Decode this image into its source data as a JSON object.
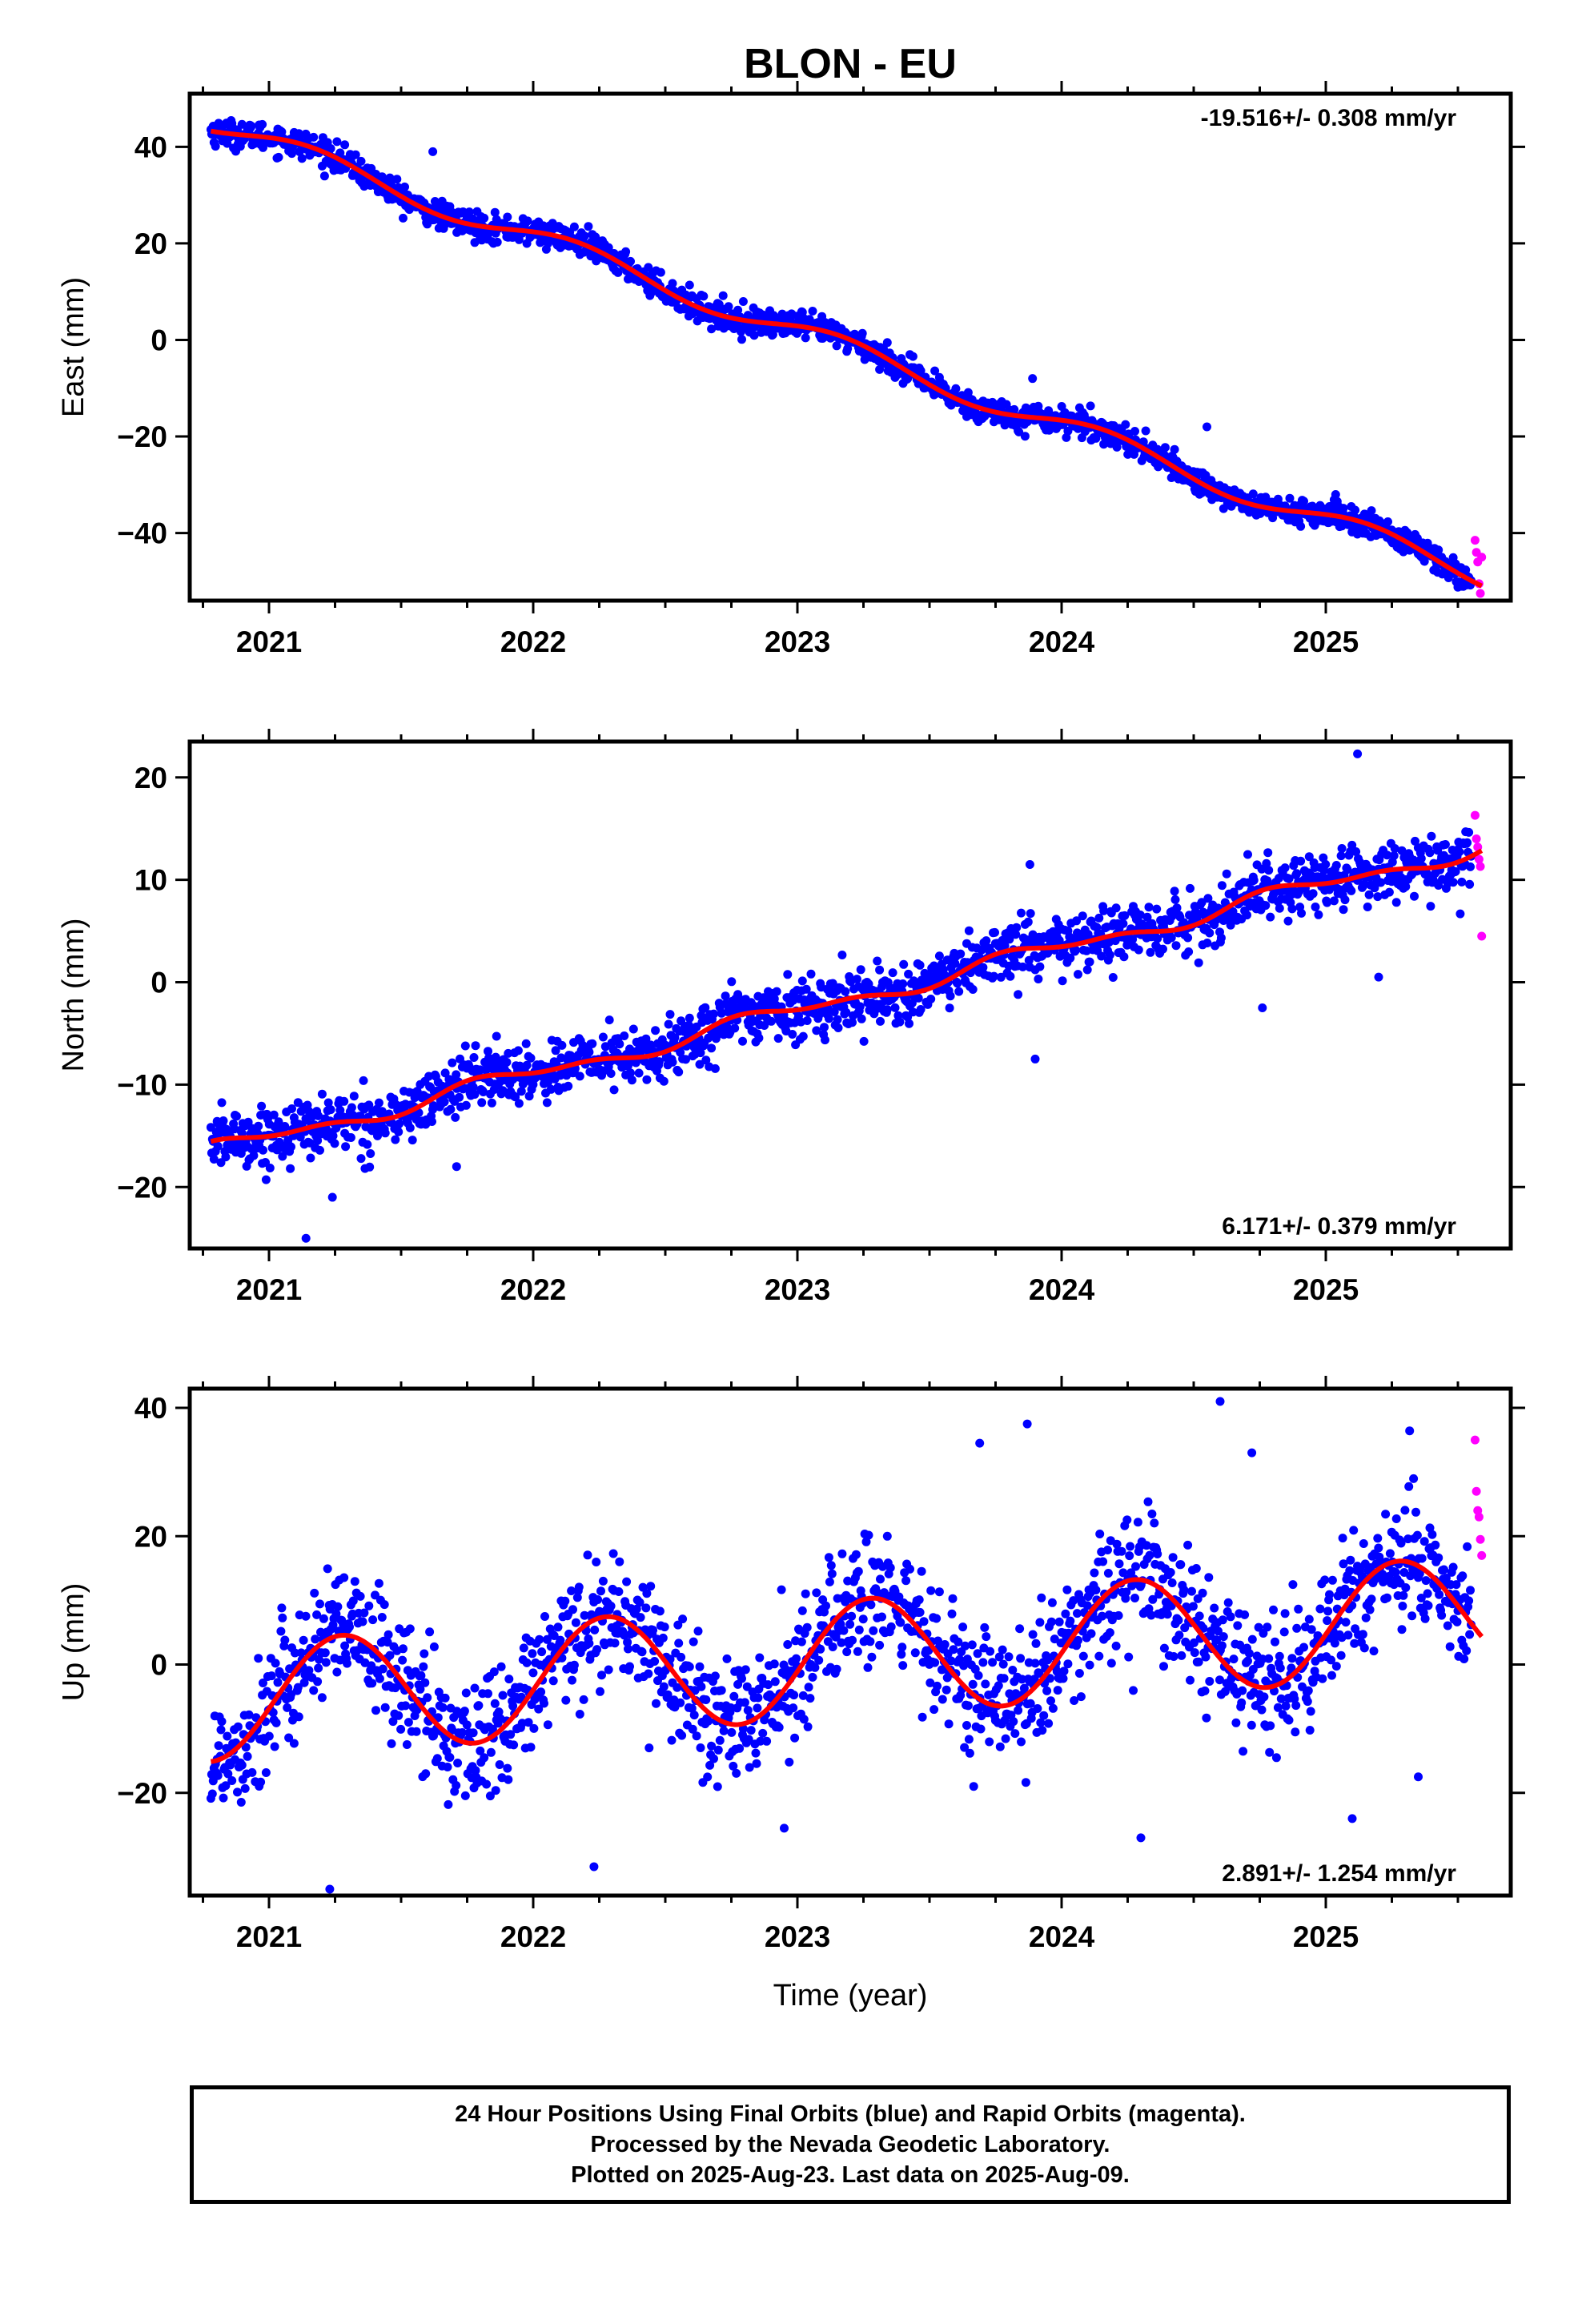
{
  "title": "BLON - EU",
  "chart_data": [
    {
      "type": "scatter",
      "id": "east",
      "ylabel": "East (mm)",
      "xlabel": "",
      "rate": "-19.516+/- 0.308 mm/yr",
      "rate_position": "top-right",
      "xlim": [
        2020.7,
        2025.7
      ],
      "ylim": [
        -54,
        51
      ],
      "x_ticks": [
        2021,
        2022,
        2023,
        2024,
        2025
      ],
      "y_ticks": [
        -40,
        -20,
        0,
        20,
        40
      ],
      "x_tick_labels": [
        "2021",
        "2022",
        "2023",
        "2024",
        "2025"
      ],
      "y_tick_labels": [
        "−40",
        "−20",
        "0",
        "20",
        "40"
      ],
      "fit_model": {
        "a": 45.0,
        "trend": -19.516,
        "c1": 1.2,
        "s1": 2.0,
        "c2": 0.0,
        "s2": 0.0
      },
      "noise_mm": 1.4,
      "final_orbits_range": [
        2020.78,
        2025.55
      ],
      "rapid_orbits": [
        [
          2025.565,
          -41.5
        ],
        [
          2025.57,
          -44.0
        ],
        [
          2025.575,
          -46.0
        ],
        [
          2025.58,
          -50.5
        ],
        [
          2025.585,
          -52.5
        ],
        [
          2025.59,
          -45.0
        ]
      ],
      "outliers": [
        [
          2021.62,
          39.0
        ],
        [
          2022.0,
          22.0
        ],
        [
          2023.4,
          -9.0
        ],
        [
          2023.89,
          -8.0
        ],
        [
          2024.55,
          -18.0
        ]
      ],
      "series": [
        {
          "name": "Final Orbits",
          "color": "#0000ff"
        },
        {
          "name": "Rapid Orbits",
          "color": "#ff00ff"
        },
        {
          "name": "",
          "color": "#ff0000"
        }
      ]
    },
    {
      "type": "scatter",
      "id": "north",
      "ylabel": "North (mm)",
      "xlabel": "",
      "rate": "6.171+/- 0.379 mm/yr",
      "rate_position": "bottom-right",
      "xlim": [
        2020.7,
        2025.7
      ],
      "ylim": [
        -26,
        23.5
      ],
      "x_ticks": [
        2021,
        2022,
        2023,
        2024,
        2025
      ],
      "y_ticks": [
        -20,
        -10,
        0,
        10,
        20
      ],
      "x_tick_labels": [
        "2021",
        "2022",
        "2023",
        "2024",
        "2025"
      ],
      "y_tick_labels": [
        "−20",
        "−10",
        "0",
        "10",
        "20"
      ],
      "fit_model": {
        "a": -16.5,
        "trend": 6.171,
        "c1": 0.5,
        "s1": -0.5,
        "c2": -0.4,
        "s2": 0.0
      },
      "noise_mm": 1.4,
      "final_orbits_range": [
        2020.78,
        2025.55
      ],
      "rapid_orbits": [
        [
          2025.565,
          16.3
        ],
        [
          2025.57,
          14.0
        ],
        [
          2025.575,
          13.2
        ],
        [
          2025.58,
          12.0
        ],
        [
          2025.585,
          11.3
        ],
        [
          2025.59,
          4.5
        ]
      ],
      "outliers": [
        [
          2021.14,
          -25.0
        ],
        [
          2021.24,
          -21.0
        ],
        [
          2023.9,
          -7.5
        ],
        [
          2024.76,
          -2.5
        ],
        [
          2025.12,
          22.3
        ],
        [
          2025.2,
          0.5
        ],
        [
          2021.71,
          -18.0
        ],
        [
          2023.88,
          11.5
        ]
      ],
      "series": [
        {
          "name": "Final Orbits",
          "color": "#0000ff"
        },
        {
          "name": "Rapid Orbits",
          "color": "#ff00ff"
        },
        {
          "name": "",
          "color": "#ff0000"
        }
      ]
    },
    {
      "type": "scatter",
      "id": "up",
      "ylabel": "Up (mm)",
      "xlabel": "Time (year)",
      "rate": "2.891+/- 1.254 mm/yr",
      "rate_position": "bottom-right",
      "xlim": [
        2020.7,
        2025.7
      ],
      "ylim": [
        -36,
        43
      ],
      "x_ticks": [
        2021,
        2022,
        2023,
        2024,
        2025
      ],
      "y_ticks": [
        -20,
        0,
        20,
        40
      ],
      "x_tick_labels": [
        "2021",
        "2022",
        "2023",
        "2024",
        "2025"
      ],
      "y_tick_labels": [
        "−20",
        "0",
        "20",
        "40"
      ],
      "fit_model": {
        "a": -6.0,
        "trend": 2.891,
        "c1": -1.5,
        "s1": 9.0,
        "c2": 0.0,
        "s2": 0.0
      },
      "noise_mm": 5.0,
      "final_orbits_range": [
        2020.78,
        2025.55
      ],
      "rapid_orbits": [
        [
          2025.565,
          35.0
        ],
        [
          2025.57,
          27.0
        ],
        [
          2025.575,
          24.0
        ],
        [
          2025.58,
          23.0
        ],
        [
          2025.585,
          19.5
        ],
        [
          2025.59,
          17.0
        ]
      ],
      "outliers": [
        [
          2021.23,
          -35.0
        ],
        [
          2022.23,
          -31.5
        ],
        [
          2023.69,
          34.5
        ],
        [
          2023.87,
          37.5
        ],
        [
          2024.6,
          41.0
        ],
        [
          2024.72,
          33.0
        ],
        [
          2022.95,
          -25.5
        ],
        [
          2024.3,
          -27.0
        ],
        [
          2025.1,
          -24.0
        ],
        [
          2025.35,
          -17.5
        ]
      ],
      "series": [
        {
          "name": "Final Orbits",
          "color": "#0000ff"
        },
        {
          "name": "Rapid Orbits",
          "color": "#ff00ff"
        },
        {
          "name": "",
          "color": "#ff0000"
        }
      ]
    }
  ],
  "footer": {
    "line1": "24 Hour Positions Using Final Orbits (blue) and Rapid Orbits (magenta).",
    "line2": "Processed by the Nevada Geodetic Laboratory.",
    "line3": "Plotted on 2025-Aug-23. Last data on 2025-Aug-09."
  }
}
